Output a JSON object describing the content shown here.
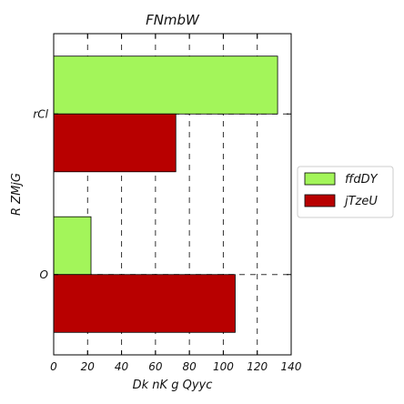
{
  "chart_data": {
    "type": "bar",
    "orientation": "horizontal",
    "title": "FNmbW",
    "xlabel": "Dk nK g Qyyc",
    "ylabel": "R ZMjG",
    "categories": [
      "rCl",
      "O"
    ],
    "series": [
      {
        "name": "ffdDY",
        "color": "#a3f55a",
        "values": [
          132,
          22
        ]
      },
      {
        "name": "jTzeU",
        "color": "#b80000",
        "values": [
          72,
          107
        ]
      }
    ],
    "xlim": [
      0,
      140
    ],
    "xticks": [
      0,
      20,
      40,
      60,
      80,
      100,
      120,
      140
    ],
    "grid": true,
    "legend_position": "right"
  }
}
